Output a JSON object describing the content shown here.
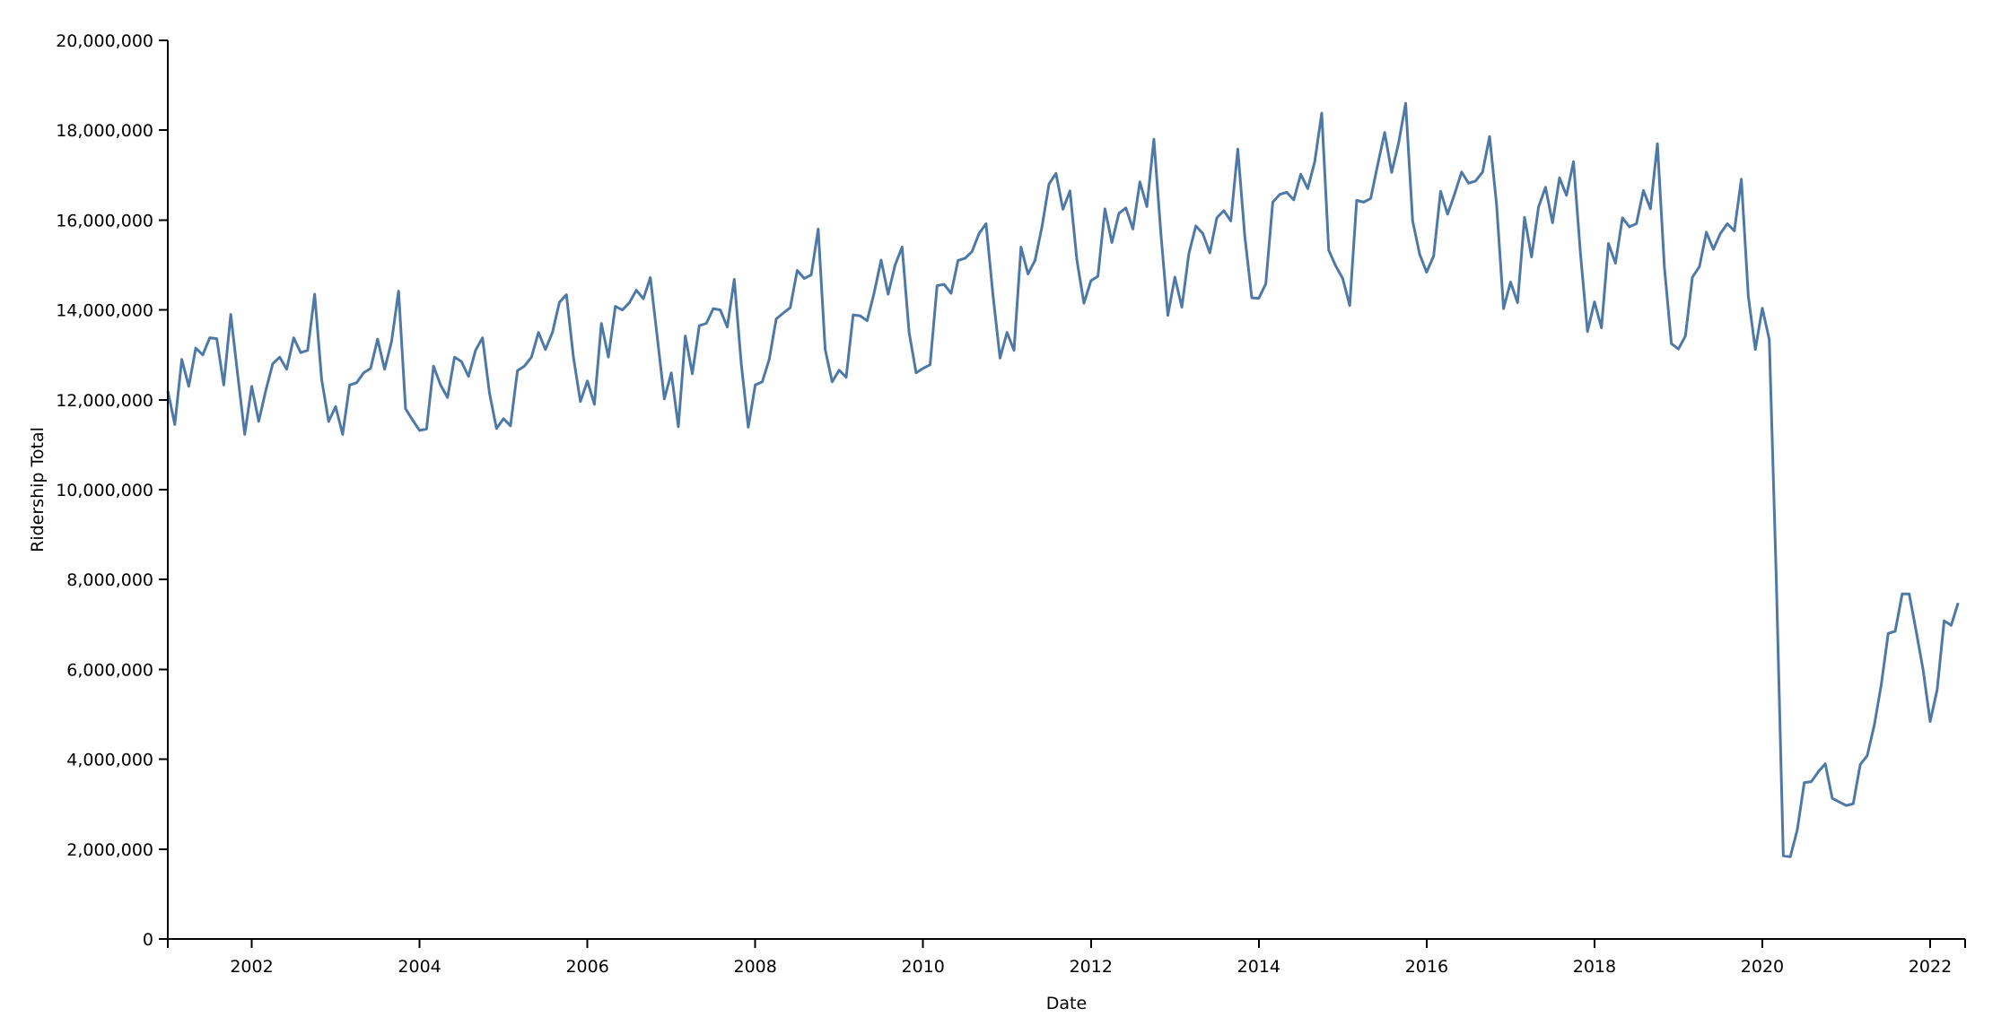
{
  "chart_data": {
    "type": "line",
    "title": "",
    "xlabel": "Date",
    "ylabel": "Ridership Total",
    "xlim": [
      "2001-01",
      "2022-06"
    ],
    "ylim": [
      0,
      20000000
    ],
    "x_ticks": [
      "2002",
      "2004",
      "2006",
      "2008",
      "2010",
      "2012",
      "2014",
      "2016",
      "2018",
      "2020",
      "2022"
    ],
    "y_ticks": [
      "0",
      "2,000,000",
      "4,000,000",
      "6,000,000",
      "8,000,000",
      "10,000,000",
      "12,000,000",
      "14,000,000",
      "16,000,000",
      "18,000,000",
      "20,000,000"
    ],
    "grid": false,
    "legend": "none",
    "line_color": "#4e79a7",
    "series": [
      {
        "x": [
          "2001-01",
          "2001-02",
          "2001-03",
          "2001-04",
          "2001-05",
          "2001-06",
          "2001-07",
          "2001-08",
          "2001-09",
          "2001-10",
          "2001-11",
          "2001-12",
          "2002-01",
          "2002-02",
          "2002-03",
          "2002-04",
          "2002-05",
          "2002-06",
          "2002-07",
          "2002-08",
          "2002-09",
          "2002-10",
          "2002-11",
          "2002-12",
          "2003-01",
          "2003-02",
          "2003-03",
          "2003-04",
          "2003-05",
          "2003-06",
          "2003-07",
          "2003-08",
          "2003-09",
          "2003-10",
          "2003-11",
          "2003-12",
          "2004-01",
          "2004-02",
          "2004-03",
          "2004-04",
          "2004-05",
          "2004-06",
          "2004-07",
          "2004-08",
          "2004-09",
          "2004-10",
          "2004-11",
          "2004-12",
          "2005-01",
          "2005-02",
          "2005-03",
          "2005-04",
          "2005-05",
          "2005-06",
          "2005-07",
          "2005-08",
          "2005-09",
          "2005-10",
          "2005-11",
          "2005-12",
          "2006-01",
          "2006-02",
          "2006-03",
          "2006-04",
          "2006-05",
          "2006-06",
          "2006-07",
          "2006-08",
          "2006-09",
          "2006-10",
          "2006-11",
          "2006-12",
          "2007-01",
          "2007-02",
          "2007-03",
          "2007-04",
          "2007-05",
          "2007-06",
          "2007-07",
          "2007-08",
          "2007-09",
          "2007-10",
          "2007-11",
          "2007-12",
          "2008-01",
          "2008-02",
          "2008-03",
          "2008-04",
          "2008-05",
          "2008-06",
          "2008-07",
          "2008-08",
          "2008-09",
          "2008-10",
          "2008-11",
          "2008-12",
          "2009-01",
          "2009-02",
          "2009-03",
          "2009-04",
          "2009-05",
          "2009-06",
          "2009-07",
          "2009-08",
          "2009-09",
          "2009-10",
          "2009-11",
          "2009-12",
          "2010-01",
          "2010-02",
          "2010-03",
          "2010-04",
          "2010-05",
          "2010-06",
          "2010-07",
          "2010-08",
          "2010-09",
          "2010-10",
          "2010-11",
          "2010-12",
          "2011-01",
          "2011-02",
          "2011-03",
          "2011-04",
          "2011-05",
          "2011-06",
          "2011-07",
          "2011-08",
          "2011-09",
          "2011-10",
          "2011-11",
          "2011-12",
          "2012-01",
          "2012-02",
          "2012-03",
          "2012-04",
          "2012-05",
          "2012-06",
          "2012-07",
          "2012-08",
          "2012-09",
          "2012-10",
          "2012-11",
          "2012-12",
          "2013-01",
          "2013-02",
          "2013-03",
          "2013-04",
          "2013-05",
          "2013-06",
          "2013-07",
          "2013-08",
          "2013-09",
          "2013-10",
          "2013-11",
          "2013-12",
          "2014-01",
          "2014-02",
          "2014-03",
          "2014-04",
          "2014-05",
          "2014-06",
          "2014-07",
          "2014-08",
          "2014-09",
          "2014-10",
          "2014-11",
          "2014-12",
          "2015-01",
          "2015-02",
          "2015-03",
          "2015-04",
          "2015-05",
          "2015-06",
          "2015-07",
          "2015-08",
          "2015-09",
          "2015-10",
          "2015-11",
          "2015-12",
          "2016-01",
          "2016-02",
          "2016-03",
          "2016-04",
          "2016-05",
          "2016-06",
          "2016-07",
          "2016-08",
          "2016-09",
          "2016-10",
          "2016-11",
          "2016-12",
          "2017-01",
          "2017-02",
          "2017-03",
          "2017-04",
          "2017-05",
          "2017-06",
          "2017-07",
          "2017-08",
          "2017-09",
          "2017-10",
          "2017-11",
          "2017-12",
          "2018-01",
          "2018-02",
          "2018-03",
          "2018-04",
          "2018-05",
          "2018-06",
          "2018-07",
          "2018-08",
          "2018-09",
          "2018-10",
          "2018-11",
          "2018-12",
          "2019-01",
          "2019-02",
          "2019-03",
          "2019-04",
          "2019-05",
          "2019-06",
          "2019-07",
          "2019-08",
          "2019-09",
          "2019-10",
          "2019-11",
          "2019-12",
          "2020-01",
          "2020-02",
          "2020-03",
          "2020-04",
          "2020-05",
          "2020-06",
          "2020-07",
          "2020-08",
          "2020-09",
          "2020-10",
          "2020-11",
          "2020-12",
          "2021-01",
          "2021-02",
          "2021-03",
          "2021-04",
          "2021-05",
          "2021-06",
          "2021-07",
          "2021-08",
          "2021-09",
          "2021-10",
          "2021-11",
          "2021-12",
          "2022-01",
          "2022-02",
          "2022-03",
          "2022-04",
          "2022-05"
        ],
        "y": [
          12200000,
          11450000,
          12900000,
          12300000,
          13150000,
          13000000,
          13380000,
          13360000,
          12330000,
          13900000,
          12550000,
          11230000,
          12300000,
          11520000,
          12200000,
          12800000,
          12950000,
          12680000,
          13380000,
          13050000,
          13100000,
          14350000,
          12450000,
          11520000,
          11850000,
          11230000,
          12330000,
          12380000,
          12600000,
          12700000,
          13350000,
          12680000,
          13300000,
          14420000,
          11800000,
          11550000,
          11320000,
          11350000,
          12750000,
          12330000,
          12050000,
          12950000,
          12850000,
          12520000,
          13100000,
          13380000,
          12150000,
          11360000,
          11580000,
          11420000,
          12650000,
          12750000,
          12950000,
          13500000,
          13120000,
          13500000,
          14170000,
          14340000,
          12950000,
          11960000,
          12420000,
          11900000,
          13700000,
          12950000,
          14080000,
          14000000,
          14160000,
          14440000,
          14250000,
          14720000,
          13380000,
          12020000,
          12600000,
          11400000,
          13420000,
          12580000,
          13650000,
          13700000,
          14030000,
          14000000,
          13620000,
          14680000,
          12800000,
          11390000,
          12330000,
          12400000,
          12900000,
          13800000,
          13930000,
          14050000,
          14880000,
          14700000,
          14780000,
          15800000,
          13120000,
          12400000,
          12660000,
          12500000,
          13890000,
          13870000,
          13760000,
          14380000,
          15110000,
          14350000,
          15000000,
          15400000,
          13500000,
          12600000,
          12700000,
          12780000,
          14540000,
          14570000,
          14370000,
          15100000,
          15150000,
          15300000,
          15700000,
          15920000,
          14320000,
          12930000,
          13500000,
          13100000,
          15400000,
          14800000,
          15100000,
          15850000,
          16800000,
          17040000,
          16240000,
          16650000,
          15100000,
          14150000,
          14650000,
          14750000,
          16250000,
          15500000,
          16150000,
          16270000,
          15800000,
          16850000,
          16300000,
          17800000,
          15700000,
          13880000,
          14730000,
          14060000,
          15250000,
          15870000,
          15700000,
          15270000,
          16050000,
          16210000,
          15980000,
          17580000,
          15640000,
          14270000,
          14260000,
          14580000,
          16400000,
          16570000,
          16620000,
          16450000,
          17020000,
          16700000,
          17300000,
          18380000,
          15330000,
          14980000,
          14700000,
          14100000,
          16440000,
          16400000,
          16480000,
          17230000,
          17950000,
          17060000,
          17720000,
          18600000,
          15980000,
          15240000,
          14840000,
          15200000,
          16640000,
          16130000,
          16580000,
          17070000,
          16820000,
          16870000,
          17070000,
          17860000,
          16350000,
          14030000,
          14620000,
          14160000,
          16060000,
          15180000,
          16290000,
          16730000,
          15940000,
          16940000,
          16550000,
          17300000,
          15250000,
          13520000,
          14180000,
          13600000,
          15480000,
          15040000,
          16050000,
          15850000,
          15920000,
          16660000,
          16250000,
          17700000,
          14950000,
          13250000,
          13130000,
          13420000,
          14730000,
          14960000,
          15730000,
          15350000,
          15700000,
          15920000,
          15760000,
          16910000,
          14300000,
          13120000,
          14040000,
          13340000,
          8000000,
          1850000,
          1830000,
          2430000,
          3480000,
          3500000,
          3720000,
          3900000,
          3130000,
          3050000,
          2970000,
          3010000,
          3880000,
          4080000,
          4750000,
          5650000,
          6800000,
          6850000,
          7680000,
          7680000,
          6850000,
          5980000,
          4840000,
          5550000,
          7080000,
          6980000,
          7480000
        ]
      }
    ]
  }
}
